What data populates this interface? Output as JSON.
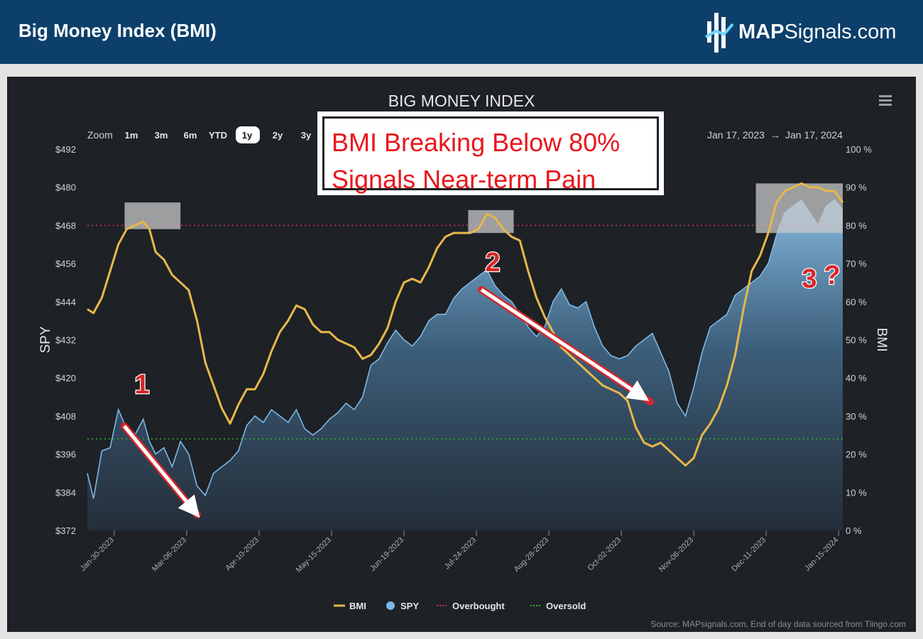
{
  "header": {
    "title": "Big Money Index (BMI)",
    "brand_bold": "MAP",
    "brand_rest": "Signals.com"
  },
  "chart_toolbar": {
    "zoom_label": "Zoom",
    "zoom_options": [
      "1m",
      "3m",
      "6m",
      "YTD",
      "1y",
      "2y",
      "3y"
    ],
    "selected_zoom": "1y",
    "date_from": "Jan 17, 2023",
    "date_arrow": "→",
    "date_to": "Jan 17, 2024",
    "menu_icon": "hamburger-menu-icon"
  },
  "callout": {
    "line1": "BMI Breaking Below 80%",
    "line2": "Signals Near-term Pain"
  },
  "annotations": {
    "a1": "1",
    "a2": "2",
    "a3": "3",
    "a3_q": "?"
  },
  "source": "Source: MAPsignals.com, End of day data sourced from Tiingo.com",
  "colors": {
    "bmi": "#e8b84a",
    "spy": "#7cb8e8",
    "overbought": "#c8345a",
    "oversold": "#2eb82e",
    "annotation": "#d8262a",
    "background": "#1e2125",
    "header": "#0c3f6a"
  },
  "chart_data": {
    "type": "line",
    "title": "BIG MONEY INDEX",
    "y_left_label": "SPY",
    "y_right_label": "BMI",
    "y_left_range": [
      372,
      492
    ],
    "y_right_range": [
      0,
      100
    ],
    "y_left_ticks": [
      "$492",
      "$480",
      "$468",
      "$456",
      "$444",
      "$432",
      "$420",
      "$408",
      "$396",
      "$384",
      "$372"
    ],
    "y_right_ticks": [
      "100 %",
      "90 %",
      "80 %",
      "70 %",
      "60 %",
      "50 %",
      "40 %",
      "30 %",
      "20 %",
      "10 %",
      "0 %"
    ],
    "x_range": [
      "2023-01-17",
      "2024-01-17"
    ],
    "x_ticks": [
      "Jan-30-2023",
      "Mar-06-2023",
      "Apr-10-2023",
      "May-15-2023",
      "Jun-19-2023",
      "Jul-24-2023",
      "Aug-28-2023",
      "Oct-02-2023",
      "Nov-06-2023",
      "Dec-11-2023",
      "Jan-15-2024"
    ],
    "overbought_level": 80,
    "oversold_level": 24,
    "legend": [
      "BMI",
      "SPY",
      "Overbought",
      "Oversold"
    ],
    "legend_position": "bottom-center",
    "grid": false,
    "series": [
      {
        "name": "BMI",
        "axis": "right",
        "points": [
          [
            "2023-01-17",
            58
          ],
          [
            "2023-01-20",
            57
          ],
          [
            "2023-01-24",
            61
          ],
          [
            "2023-01-28",
            68
          ],
          [
            "2023-02-01",
            75
          ],
          [
            "2023-02-05",
            79
          ],
          [
            "2023-02-09",
            80
          ],
          [
            "2023-02-13",
            81
          ],
          [
            "2023-02-16",
            79
          ],
          [
            "2023-02-19",
            73
          ],
          [
            "2023-02-23",
            71
          ],
          [
            "2023-02-27",
            67
          ],
          [
            "2023-03-03",
            65
          ],
          [
            "2023-03-07",
            63
          ],
          [
            "2023-03-11",
            55
          ],
          [
            "2023-03-15",
            44
          ],
          [
            "2023-03-19",
            38
          ],
          [
            "2023-03-23",
            32
          ],
          [
            "2023-03-27",
            28
          ],
          [
            "2023-03-31",
            33
          ],
          [
            "2023-04-04",
            37
          ],
          [
            "2023-04-08",
            37
          ],
          [
            "2023-04-12",
            41
          ],
          [
            "2023-04-16",
            47
          ],
          [
            "2023-04-20",
            52
          ],
          [
            "2023-04-24",
            55
          ],
          [
            "2023-04-28",
            59
          ],
          [
            "2023-05-02",
            58
          ],
          [
            "2023-05-06",
            54
          ],
          [
            "2023-05-10",
            52
          ],
          [
            "2023-05-14",
            52
          ],
          [
            "2023-05-18",
            50
          ],
          [
            "2023-05-22",
            49
          ],
          [
            "2023-05-26",
            48
          ],
          [
            "2023-05-30",
            45
          ],
          [
            "2023-06-03",
            46
          ],
          [
            "2023-06-07",
            49
          ],
          [
            "2023-06-11",
            53
          ],
          [
            "2023-06-15",
            60
          ],
          [
            "2023-06-19",
            65
          ],
          [
            "2023-06-23",
            66
          ],
          [
            "2023-06-27",
            65
          ],
          [
            "2023-07-01",
            69
          ],
          [
            "2023-07-05",
            74
          ],
          [
            "2023-07-09",
            77
          ],
          [
            "2023-07-13",
            78
          ],
          [
            "2023-07-17",
            78
          ],
          [
            "2023-07-21",
            78
          ],
          [
            "2023-07-25",
            79
          ],
          [
            "2023-07-29",
            83
          ],
          [
            "2023-08-02",
            82
          ],
          [
            "2023-08-06",
            79
          ],
          [
            "2023-08-10",
            77
          ],
          [
            "2023-08-14",
            76
          ],
          [
            "2023-08-18",
            68
          ],
          [
            "2023-08-22",
            61
          ],
          [
            "2023-08-26",
            56
          ],
          [
            "2023-08-30",
            52
          ],
          [
            "2023-09-03",
            48
          ],
          [
            "2023-09-07",
            46
          ],
          [
            "2023-09-11",
            44
          ],
          [
            "2023-09-15",
            42
          ],
          [
            "2023-09-19",
            40
          ],
          [
            "2023-09-23",
            38
          ],
          [
            "2023-09-27",
            37
          ],
          [
            "2023-10-01",
            36
          ],
          [
            "2023-10-05",
            34
          ],
          [
            "2023-10-09",
            27
          ],
          [
            "2023-10-13",
            23
          ],
          [
            "2023-10-17",
            22
          ],
          [
            "2023-10-21",
            23
          ],
          [
            "2023-10-25",
            21
          ],
          [
            "2023-10-29",
            19
          ],
          [
            "2023-11-02",
            17
          ],
          [
            "2023-11-06",
            19
          ],
          [
            "2023-11-10",
            25
          ],
          [
            "2023-11-14",
            28
          ],
          [
            "2023-11-18",
            32
          ],
          [
            "2023-11-22",
            38
          ],
          [
            "2023-11-26",
            46
          ],
          [
            "2023-11-30",
            58
          ],
          [
            "2023-12-04",
            68
          ],
          [
            "2023-12-08",
            72
          ],
          [
            "2023-12-12",
            78
          ],
          [
            "2023-12-16",
            86
          ],
          [
            "2023-12-20",
            89
          ],
          [
            "2023-12-24",
            90
          ],
          [
            "2023-12-28",
            91
          ],
          [
            "2024-01-01",
            90
          ],
          [
            "2024-01-05",
            90
          ],
          [
            "2024-01-09",
            89
          ],
          [
            "2024-01-13",
            89
          ],
          [
            "2024-01-17",
            86
          ]
        ]
      },
      {
        "name": "SPY",
        "axis": "left",
        "points": [
          [
            "2023-01-17",
            390
          ],
          [
            "2023-01-20",
            382
          ],
          [
            "2023-01-24",
            397
          ],
          [
            "2023-01-28",
            398
          ],
          [
            "2023-02-01",
            410
          ],
          [
            "2023-02-05",
            404
          ],
          [
            "2023-02-09",
            402
          ],
          [
            "2023-02-13",
            407
          ],
          [
            "2023-02-16",
            400
          ],
          [
            "2023-02-19",
            396
          ],
          [
            "2023-02-23",
            398
          ],
          [
            "2023-02-27",
            392
          ],
          [
            "2023-03-03",
            400
          ],
          [
            "2023-03-07",
            396
          ],
          [
            "2023-03-11",
            386
          ],
          [
            "2023-03-15",
            383
          ],
          [
            "2023-03-19",
            390
          ],
          [
            "2023-03-23",
            392
          ],
          [
            "2023-03-27",
            394
          ],
          [
            "2023-03-31",
            397
          ],
          [
            "2023-04-04",
            405
          ],
          [
            "2023-04-08",
            408
          ],
          [
            "2023-04-12",
            406
          ],
          [
            "2023-04-16",
            410
          ],
          [
            "2023-04-20",
            408
          ],
          [
            "2023-04-24",
            406
          ],
          [
            "2023-04-28",
            410
          ],
          [
            "2023-05-02",
            404
          ],
          [
            "2023-05-06",
            402
          ],
          [
            "2023-05-10",
            404
          ],
          [
            "2023-05-14",
            407
          ],
          [
            "2023-05-18",
            409
          ],
          [
            "2023-05-22",
            412
          ],
          [
            "2023-05-26",
            410
          ],
          [
            "2023-05-30",
            414
          ],
          [
            "2023-06-03",
            424
          ],
          [
            "2023-06-07",
            426
          ],
          [
            "2023-06-11",
            431
          ],
          [
            "2023-06-15",
            435
          ],
          [
            "2023-06-19",
            432
          ],
          [
            "2023-06-23",
            430
          ],
          [
            "2023-06-27",
            433
          ],
          [
            "2023-07-01",
            438
          ],
          [
            "2023-07-05",
            440
          ],
          [
            "2023-07-09",
            440
          ],
          [
            "2023-07-13",
            445
          ],
          [
            "2023-07-17",
            448
          ],
          [
            "2023-07-21",
            450
          ],
          [
            "2023-07-25",
            452
          ],
          [
            "2023-07-29",
            454
          ],
          [
            "2023-08-02",
            449
          ],
          [
            "2023-08-06",
            446
          ],
          [
            "2023-08-10",
            444
          ],
          [
            "2023-08-14",
            440
          ],
          [
            "2023-08-18",
            436
          ],
          [
            "2023-08-22",
            433
          ],
          [
            "2023-08-26",
            436
          ],
          [
            "2023-08-30",
            444
          ],
          [
            "2023-09-03",
            448
          ],
          [
            "2023-09-07",
            443
          ],
          [
            "2023-09-11",
            442
          ],
          [
            "2023-09-15",
            444
          ],
          [
            "2023-09-19",
            436
          ],
          [
            "2023-09-23",
            430
          ],
          [
            "2023-09-27",
            427
          ],
          [
            "2023-10-01",
            426
          ],
          [
            "2023-10-05",
            427
          ],
          [
            "2023-10-09",
            430
          ],
          [
            "2023-10-13",
            432
          ],
          [
            "2023-10-17",
            434
          ],
          [
            "2023-10-21",
            428
          ],
          [
            "2023-10-25",
            422
          ],
          [
            "2023-10-29",
            412
          ],
          [
            "2023-11-02",
            408
          ],
          [
            "2023-11-06",
            417
          ],
          [
            "2023-11-10",
            428
          ],
          [
            "2023-11-14",
            436
          ],
          [
            "2023-11-18",
            438
          ],
          [
            "2023-11-22",
            440
          ],
          [
            "2023-11-26",
            446
          ],
          [
            "2023-11-30",
            448
          ],
          [
            "2023-12-04",
            450
          ],
          [
            "2023-12-08",
            452
          ],
          [
            "2023-12-12",
            456
          ],
          [
            "2023-12-16",
            465
          ],
          [
            "2023-12-20",
            472
          ],
          [
            "2023-12-24",
            474
          ],
          [
            "2023-12-28",
            476
          ],
          [
            "2024-01-01",
            472
          ],
          [
            "2024-01-05",
            468
          ],
          [
            "2024-01-09",
            474
          ],
          [
            "2024-01-13",
            476
          ],
          [
            "2024-01-17",
            473
          ]
        ]
      }
    ]
  }
}
